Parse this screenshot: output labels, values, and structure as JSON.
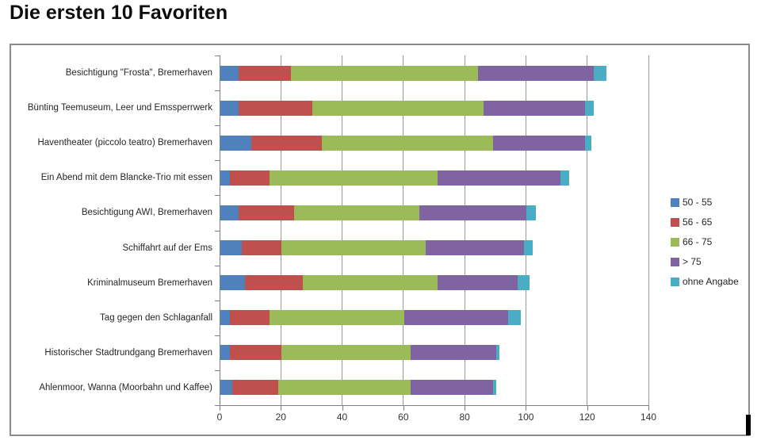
{
  "page": {
    "title": "Die ersten 10 Favoriten"
  },
  "chart_data": {
    "type": "bar",
    "orientation": "horizontal",
    "stacked": true,
    "title": "Die ersten 10 Favoriten",
    "grid": true,
    "legend_position": "right",
    "categories": [
      "Besichtigung \"Frosta\", Bremerhaven",
      "Bünting Teemuseum, Leer und Emssperrwerk",
      "Haventheater (piccolo teatro) Bremerhaven",
      "Ein Abend mit dem Blancke-Trio mit essen",
      "Besichtigung AWI, Bremerhaven",
      "Schiffahrt auf der Ems",
      "Kriminalmuseum Bremerhaven",
      "Tag gegen den Schlaganfall",
      "Historischer Stadtrundgang Bremerhaven",
      "Ahlenmoor, Wanna (Moorbahn und Kaffee)"
    ],
    "series": [
      {
        "name": "50 - 55",
        "color": "#4F81BD",
        "values": [
          6,
          6,
          10,
          3,
          6,
          7,
          8,
          3,
          3,
          4
        ]
      },
      {
        "name": "56 - 65",
        "color": "#C0504D",
        "values": [
          17,
          24,
          23,
          13,
          18,
          13,
          19,
          13,
          17,
          15
        ]
      },
      {
        "name": "66 - 75",
        "color": "#9BBB59",
        "values": [
          61,
          56,
          56,
          55,
          41,
          47,
          44,
          44,
          42,
          43
        ]
      },
      {
        "name": "> 75",
        "color": "#8064A2",
        "values": [
          38,
          33,
          30,
          40,
          35,
          32,
          26,
          34,
          28,
          27
        ]
      },
      {
        "name": "ohne Angabe",
        "color": "#4BACC6",
        "values": [
          4,
          3,
          2,
          3,
          3,
          3,
          4,
          4,
          1,
          1
        ]
      }
    ],
    "totals": [
      126,
      122,
      121,
      114,
      103,
      102,
      101,
      98,
      91,
      90
    ],
    "x_axis": {
      "min": 0,
      "max": 140,
      "tick_step": 20,
      "ticks": [
        0,
        20,
        40,
        60,
        80,
        100,
        120,
        140
      ]
    }
  }
}
